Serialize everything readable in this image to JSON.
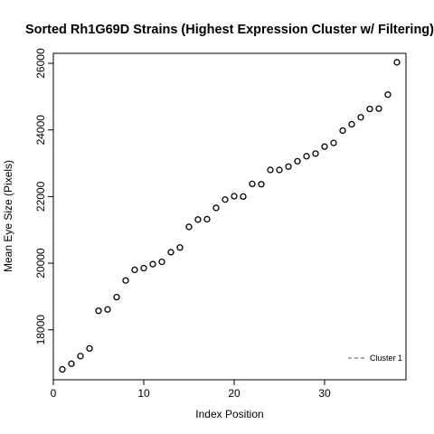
{
  "chart_data": {
    "type": "scatter",
    "title": "Sorted Rh1G69D Strains (Highest Expression Cluster w/ Filtering)",
    "xlabel": "Index Position",
    "ylabel": "Mean Eye Size (Pixels)",
    "xlim": [
      0,
      39
    ],
    "ylim": [
      16500,
      26300
    ],
    "xticks": [
      0,
      10,
      20,
      30
    ],
    "yticks": [
      18000,
      20000,
      22000,
      24000,
      26000
    ],
    "grid": false,
    "legend": {
      "placement": "bottom-right",
      "entries": [
        "Cluster 1"
      ]
    },
    "series": [
      {
        "name": "Cluster 1",
        "x": [
          1,
          2,
          3,
          4,
          5,
          6,
          7,
          8,
          9,
          10,
          11,
          12,
          13,
          14,
          15,
          16,
          17,
          18,
          19,
          20,
          21,
          22,
          23,
          24,
          25,
          26,
          27,
          28,
          29,
          30,
          31,
          32,
          33,
          34,
          35,
          36,
          37,
          38
        ],
        "y": [
          16810,
          16980,
          17210,
          17440,
          18570,
          18610,
          18980,
          19480,
          19800,
          19850,
          19970,
          20040,
          20330,
          20470,
          21090,
          21310,
          21320,
          21660,
          21910,
          22010,
          22000,
          22380,
          22370,
          22800,
          22800,
          22900,
          23060,
          23210,
          23290,
          23500,
          23610,
          23980,
          24170,
          24380,
          24630,
          24640,
          25060,
          26030
        ]
      }
    ]
  }
}
